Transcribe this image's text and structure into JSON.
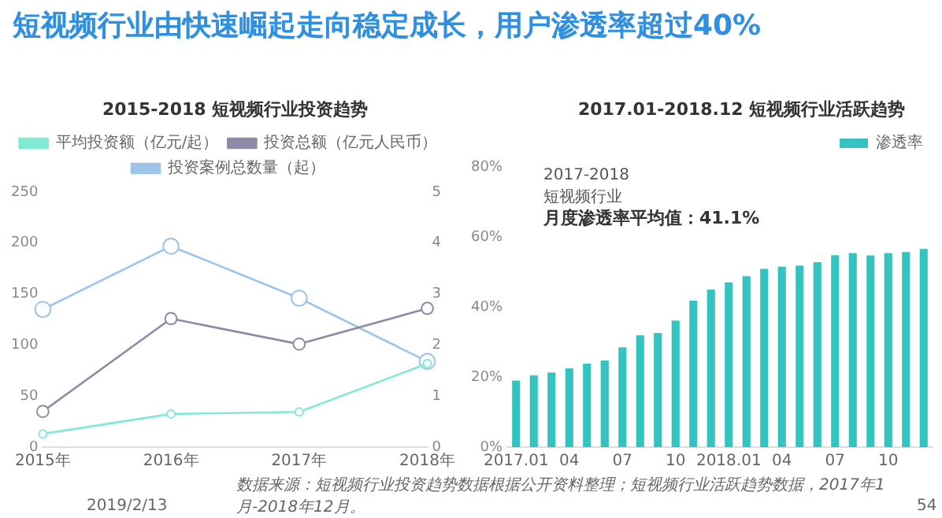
{
  "chart_data": [
    {
      "type": "line",
      "title": "2015-2018  短视频行业投资趋势",
      "annotations": [
        "短视频行业由快速崛起走向稳定成长，用户渗透率超过40%"
      ],
      "categories": [
        "2015年",
        "2016年",
        "2017年",
        "2018年"
      ],
      "series": [
        {
          "name": "投资案例总数量（起）",
          "color": "#9ec4ea",
          "values": [
            135,
            197,
            146,
            84
          ]
        },
        {
          "name": "投资总额（亿元人民币）",
          "color": "#8c8aa6",
          "values": [
            35,
            126,
            101,
            136
          ]
        },
        {
          "name": "平均投资额（亿元/起）",
          "color": "#80ead4",
          "axis": "y2",
          "values": [
            0.26,
            0.65,
            0.69,
            1.64
          ]
        }
      ],
      "ylim": [
        0,
        250
      ],
      "yticks": [
        0,
        50,
        100,
        150,
        200,
        250
      ],
      "y2lim": [
        0,
        5
      ],
      "y2ticks": [
        0,
        1,
        2,
        3,
        4,
        5
      ],
      "marker": "circle",
      "legend": "top",
      "grid": false
    },
    {
      "type": "bar",
      "title": "2017.01-2018.12  短视频行业活跃趋势",
      "categories": [
        "2017.01",
        null,
        null,
        "04",
        null,
        null,
        "07",
        null,
        null,
        "10",
        null,
        null,
        "2018.01",
        null,
        null,
        "04",
        null,
        null,
        "07",
        null,
        null,
        "10",
        null,
        null
      ],
      "series": [
        {
          "name": "渗透率",
          "color": "#33c3c0",
          "values": [
            19,
            20.5,
            21.3,
            22.5,
            23.8,
            24.7,
            28.5,
            31.9,
            32.6,
            36.1,
            41.8,
            45,
            47,
            48.8,
            50.9,
            51.5,
            51.8,
            52.8,
            54.8,
            55.4,
            54.7,
            55.4,
            55.7,
            56.6
          ]
        }
      ],
      "ylim": [
        0,
        80
      ],
      "yticks": [
        {
          "value": 0,
          "label": "0%"
        },
        {
          "value": 20,
          "label": "20%"
        },
        {
          "value": 40,
          "label": "40%"
        },
        {
          "value": 60,
          "label": "60%"
        },
        {
          "value": 80,
          "label": "80%"
        }
      ],
      "legend": "top right",
      "grid": false,
      "annotations": [
        "2017-2018",
        "短视频行业",
        "月度渗透率平均值：41.1%",
        "数据来源：短视频行业投资趋势数据根据公开资料整理；短视频行业活跃趋势数据，2017年1月-2018年12月。",
        "2019/2/13",
        "54"
      ]
    }
  ]
}
